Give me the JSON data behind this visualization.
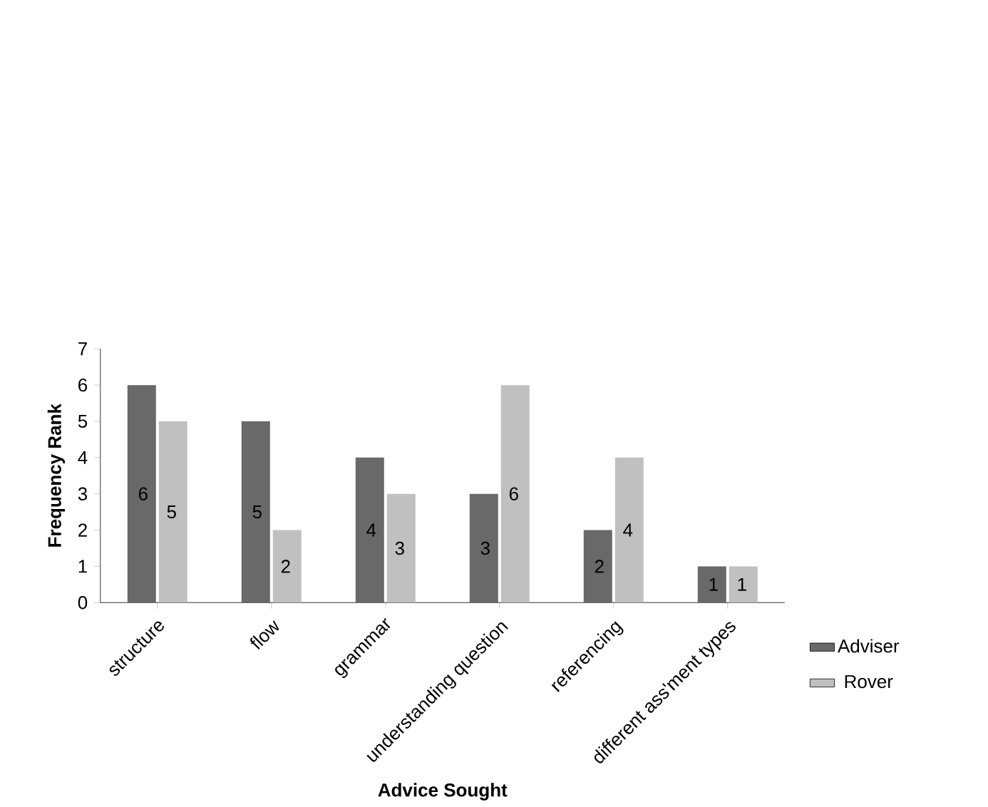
{
  "chart_data": {
    "type": "bar",
    "xlabel": "Advice Sought",
    "ylabel": "Frequency Rank",
    "categories": [
      "structure",
      "flow",
      "grammar",
      "understanding question",
      "referencing",
      "different ass'ment types"
    ],
    "series": [
      {
        "name": "Adviser",
        "color": "#696969",
        "values": [
          6,
          5,
          4,
          3,
          2,
          1
        ]
      },
      {
        "name": "Rover",
        "color": "#c0c0c0",
        "values": [
          5,
          2,
          3,
          6,
          4,
          1
        ]
      }
    ],
    "ylim": [
      0,
      7
    ],
    "yticks": [
      0,
      1,
      2,
      3,
      4,
      5,
      6,
      7
    ],
    "data_labels": true,
    "legend": "right"
  }
}
